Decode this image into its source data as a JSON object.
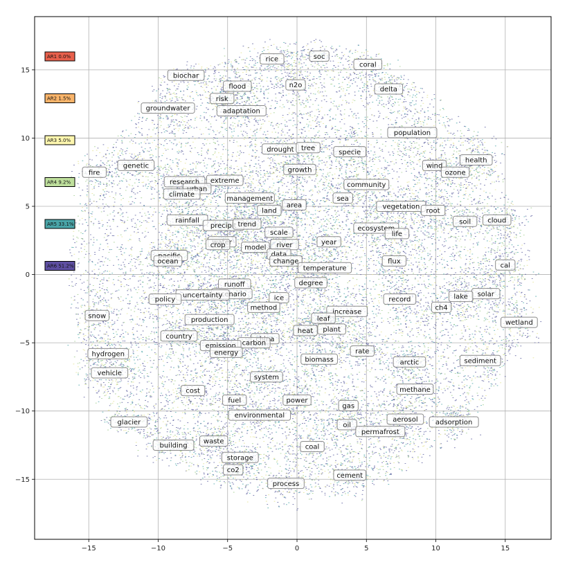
{
  "chart_data": {
    "type": "scatter",
    "title": "",
    "xlabel": "",
    "ylabel": "",
    "xlim": [
      -18.9,
      18.3
    ],
    "ylim": [
      -19.4,
      18.9
    ],
    "grid": true,
    "x_ticks": [
      -15,
      -10,
      -5,
      0,
      5,
      10,
      15
    ],
    "y_ticks": [
      -15,
      -10,
      -5,
      0,
      5,
      10,
      15
    ],
    "x_tick_labels": [
      "−15",
      "−10",
      "−5",
      "0",
      "5",
      "10",
      "15"
    ],
    "y_tick_labels": [
      "−15",
      "−10",
      "−5",
      "0",
      "5",
      "10",
      "15"
    ],
    "point_color": "#5b5e9e",
    "legend_position": "left",
    "legend": [
      {
        "label": "AR1 0.0%",
        "color": "#e8604c"
      },
      {
        "label": "AR2 1.5%",
        "color": "#f9b46a"
      },
      {
        "label": "AR3 5.0%",
        "color": "#fdf6ae"
      },
      {
        "label": "AR4 9.2%",
        "color": "#bfe09d"
      },
      {
        "label": "AR5 33.1%",
        "color": "#4aa5a8"
      },
      {
        "label": "AR6 51.2%",
        "color": "#5e4fa2"
      }
    ],
    "labels": [
      {
        "text": "rice",
        "x": -1.8,
        "y": 15.8
      },
      {
        "text": "soc",
        "x": 1.6,
        "y": 16.0
      },
      {
        "text": "coral",
        "x": 5.1,
        "y": 15.4
      },
      {
        "text": "biochar",
        "x": -8.0,
        "y": 14.6
      },
      {
        "text": "flood",
        "x": -4.3,
        "y": 13.8
      },
      {
        "text": "n2o",
        "x": -0.1,
        "y": 13.9
      },
      {
        "text": "delta",
        "x": 6.6,
        "y": 13.6
      },
      {
        "text": "risk",
        "x": -5.4,
        "y": 12.9
      },
      {
        "text": "groundwater",
        "x": -9.3,
        "y": 12.2
      },
      {
        "text": "adaptation",
        "x": -4.0,
        "y": 12.0
      },
      {
        "text": "population",
        "x": 8.3,
        "y": 10.4
      },
      {
        "text": "drought",
        "x": -1.2,
        "y": 9.2
      },
      {
        "text": "tree",
        "x": 0.8,
        "y": 9.3
      },
      {
        "text": "specie",
        "x": 3.8,
        "y": 9.0
      },
      {
        "text": "health",
        "x": 12.9,
        "y": 8.4
      },
      {
        "text": "wind",
        "x": 9.9,
        "y": 8.0
      },
      {
        "text": "genetic",
        "x": -11.6,
        "y": 8.0
      },
      {
        "text": "growth",
        "x": 0.2,
        "y": 7.7
      },
      {
        "text": "ozone",
        "x": 11.4,
        "y": 7.5
      },
      {
        "text": "fire",
        "x": -14.6,
        "y": 7.5
      },
      {
        "text": "research",
        "x": -8.1,
        "y": 6.8
      },
      {
        "text": "extreme",
        "x": -5.2,
        "y": 6.9
      },
      {
        "text": "urban",
        "x": -7.2,
        "y": 6.3
      },
      {
        "text": "community",
        "x": 5.0,
        "y": 6.6
      },
      {
        "text": "climate",
        "x": -8.3,
        "y": 5.9
      },
      {
        "text": "management",
        "x": -3.4,
        "y": 5.6
      },
      {
        "text": "sea",
        "x": 3.3,
        "y": 5.6
      },
      {
        "text": "area",
        "x": -0.2,
        "y": 5.1
      },
      {
        "text": "vegetation",
        "x": 7.5,
        "y": 5.0
      },
      {
        "text": "land",
        "x": -2.0,
        "y": 4.7
      },
      {
        "text": "root",
        "x": 9.8,
        "y": 4.7
      },
      {
        "text": "rainfall",
        "x": -7.9,
        "y": 4.0
      },
      {
        "text": "cloud",
        "x": 14.4,
        "y": 4.0
      },
      {
        "text": "soil",
        "x": 12.1,
        "y": 3.9
      },
      {
        "text": "precipit",
        "x": -5.3,
        "y": 3.6
      },
      {
        "text": "trend",
        "x": -3.6,
        "y": 3.7
      },
      {
        "text": "ecosystem",
        "x": 5.7,
        "y": 3.4
      },
      {
        "text": "life",
        "x": 7.2,
        "y": 3.0
      },
      {
        "text": "scale",
        "x": -1.3,
        "y": 3.1
      },
      {
        "text": "water",
        "x": -5.4,
        "y": 2.4
      },
      {
        "text": "crop",
        "x": -5.7,
        "y": 2.2
      },
      {
        "text": "year",
        "x": 2.3,
        "y": 2.4
      },
      {
        "text": "river",
        "x": -0.9,
        "y": 2.2
      },
      {
        "text": "model",
        "x": -3.0,
        "y": 2.0
      },
      {
        "text": "pacific",
        "x": -9.2,
        "y": 1.4
      },
      {
        "text": "ocean",
        "x": -9.3,
        "y": 1.0
      },
      {
        "text": "data",
        "x": -1.3,
        "y": 1.5
      },
      {
        "text": "flux",
        "x": 7.0,
        "y": 1.0
      },
      {
        "text": "change",
        "x": -0.8,
        "y": 1.0
      },
      {
        "text": "cal",
        "x": 15.0,
        "y": 0.7
      },
      {
        "text": "temperature",
        "x": 2.0,
        "y": 0.5
      },
      {
        "text": "runoff",
        "x": -4.5,
        "y": -0.7
      },
      {
        "text": "degree",
        "x": 1.0,
        "y": -0.6
      },
      {
        "text": "solar",
        "x": 13.6,
        "y": -1.4
      },
      {
        "text": "scenario",
        "x": -4.7,
        "y": -1.4
      },
      {
        "text": "uncertainty",
        "x": -6.8,
        "y": -1.5
      },
      {
        "text": "lake",
        "x": 11.8,
        "y": -1.6
      },
      {
        "text": "ice",
        "x": -1.3,
        "y": -1.7
      },
      {
        "text": "policy",
        "x": -9.5,
        "y": -1.8
      },
      {
        "text": "record",
        "x": 7.4,
        "y": -1.8
      },
      {
        "text": "ch4",
        "x": 10.4,
        "y": -2.4
      },
      {
        "text": "method",
        "x": -2.4,
        "y": -2.4
      },
      {
        "text": "increase",
        "x": 3.6,
        "y": -2.7
      },
      {
        "text": "snow",
        "x": -14.4,
        "y": -3.0
      },
      {
        "text": "production",
        "x": -6.3,
        "y": -3.3
      },
      {
        "text": "leaf",
        "x": 1.9,
        "y": -3.2
      },
      {
        "text": "wetland",
        "x": 16.0,
        "y": -3.5
      },
      {
        "text": "plant",
        "x": 2.5,
        "y": -4.0
      },
      {
        "text": "heat",
        "x": 0.6,
        "y": -4.1
      },
      {
        "text": "country",
        "x": -8.5,
        "y": -4.5
      },
      {
        "text": "china",
        "x": -2.3,
        "y": -4.7
      },
      {
        "text": "carbon",
        "x": -3.1,
        "y": -5.0
      },
      {
        "text": "emission",
        "x": -5.5,
        "y": -5.2
      },
      {
        "text": "energy",
        "x": -5.1,
        "y": -5.7
      },
      {
        "text": "rate",
        "x": 4.7,
        "y": -5.6
      },
      {
        "text": "hydrogen",
        "x": -13.6,
        "y": -5.8
      },
      {
        "text": "biomass",
        "x": 1.6,
        "y": -6.2
      },
      {
        "text": "arctic",
        "x": 8.1,
        "y": -6.4
      },
      {
        "text": "sediment",
        "x": 13.2,
        "y": -6.3
      },
      {
        "text": "vehicle",
        "x": -13.5,
        "y": -7.2
      },
      {
        "text": "system",
        "x": -2.2,
        "y": -7.5
      },
      {
        "text": "methane",
        "x": 8.5,
        "y": -8.4
      },
      {
        "text": "cost",
        "x": -7.5,
        "y": -8.5
      },
      {
        "text": "fuel",
        "x": -4.5,
        "y": -9.2
      },
      {
        "text": "power",
        "x": -0.0,
        "y": -9.2
      },
      {
        "text": "gas",
        "x": 3.7,
        "y": -9.6
      },
      {
        "text": "environmental",
        "x": -2.7,
        "y": -10.3
      },
      {
        "text": "aerosol",
        "x": 7.8,
        "y": -10.6
      },
      {
        "text": "glacier",
        "x": -12.1,
        "y": -10.8
      },
      {
        "text": "adsorption",
        "x": 11.3,
        "y": -10.8
      },
      {
        "text": "oil",
        "x": 3.6,
        "y": -11.0
      },
      {
        "text": "permafrost",
        "x": 6.0,
        "y": -11.5
      },
      {
        "text": "waste",
        "x": -6.0,
        "y": -12.2
      },
      {
        "text": "building",
        "x": -8.9,
        "y": -12.5
      },
      {
        "text": "coal",
        "x": 1.1,
        "y": -12.6
      },
      {
        "text": "storage",
        "x": -4.1,
        "y": -13.4
      },
      {
        "text": "co2",
        "x": -4.6,
        "y": -14.3
      },
      {
        "text": "cement",
        "x": 3.8,
        "y": -14.7
      },
      {
        "text": "process",
        "x": -0.8,
        "y": -15.3
      }
    ]
  }
}
